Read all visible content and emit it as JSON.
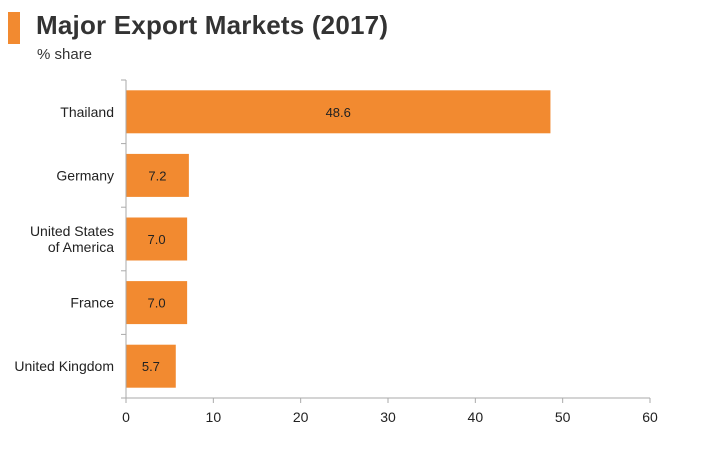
{
  "header": {
    "title": "Major Export Markets (2017)",
    "subtitle": "% share"
  },
  "colors": {
    "accent": "#f28a30",
    "bar": "#f28a30",
    "axis": "#aaaaaa",
    "text": "#222222"
  },
  "chart_data": {
    "type": "bar",
    "orientation": "horizontal",
    "title": "Major Export Markets (2017)",
    "subtitle": "% share",
    "xlabel": "",
    "ylabel": "",
    "categories": [
      [
        "Thailand"
      ],
      [
        "Germany"
      ],
      [
        "United States",
        "of America"
      ],
      [
        "France"
      ],
      [
        "United Kingdom"
      ]
    ],
    "values": [
      48.6,
      7.2,
      7.0,
      7.0,
      5.7
    ],
    "value_labels": [
      "48.6",
      "7.2",
      "7.0",
      "7.0",
      "5.7"
    ],
    "xlim": [
      0,
      60
    ],
    "xticks": [
      0,
      10,
      20,
      30,
      40,
      50,
      60
    ],
    "grid": false,
    "legend": "none"
  }
}
